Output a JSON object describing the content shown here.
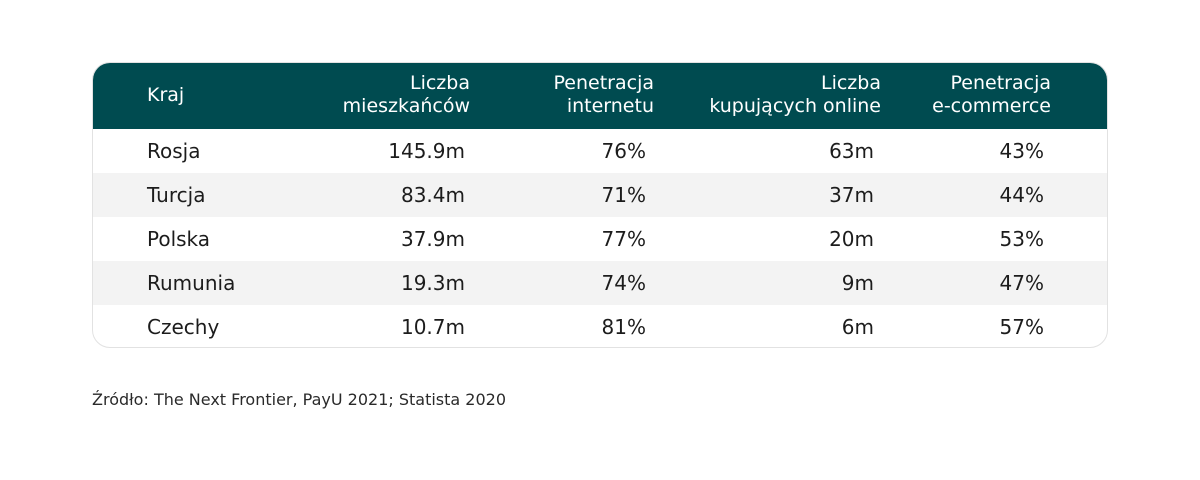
{
  "chart_data": {
    "type": "table",
    "columns": [
      "Kraj",
      "Liczba\nmieszkańców",
      "Penetracja\ninternetu",
      "Liczba\nkupujących online",
      "Penetracja\ne-commerce"
    ],
    "rows": [
      [
        "Rosja",
        "145.9m",
        "76%",
        "63m",
        "43%"
      ],
      [
        "Turcja",
        "83.4m",
        "71%",
        "37m",
        "44%"
      ],
      [
        "Polska",
        "37.9m",
        "77%",
        "20m",
        "53%"
      ],
      [
        "Rumunia",
        "19.3m",
        "74%",
        "9m",
        "47%"
      ],
      [
        "Czechy",
        "10.7m",
        "81%",
        "6m",
        "57%"
      ]
    ]
  },
  "source": "Źródło: The Next Frontier, PayU 2021; Statista 2020",
  "colors": {
    "header_bg": "#004b50",
    "header_text": "#ffffff",
    "alt_row_bg": "#f3f3f3"
  }
}
